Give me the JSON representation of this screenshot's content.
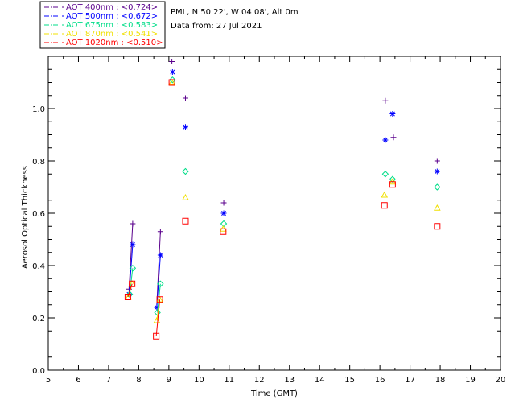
{
  "header": {
    "station": "PML, N 50 22', W 04 08', Alt 0m",
    "date": "Data from: 27 Jul 2021"
  },
  "chart_data": {
    "type": "scatter",
    "xlabel": "Time (GMT)",
    "ylabel": "Aerosol Optical Thickness",
    "xlim": [
      5,
      20
    ],
    "ylim": [
      0.0,
      1.2
    ],
    "xticks": [
      5,
      6,
      7,
      8,
      9,
      10,
      11,
      12,
      13,
      14,
      15,
      16,
      17,
      18,
      19,
      20
    ],
    "yticks": [
      0.0,
      0.2,
      0.4,
      0.6,
      0.8,
      1.0
    ],
    "ytick_labels": [
      "0.0",
      "0.2",
      "0.4",
      "0.6",
      "0.8",
      "1.0"
    ],
    "legend_position": "top-left",
    "series": [
      {
        "name": "AOT  400nm : <0.724>",
        "color": "#5a008c",
        "marker": "plus",
        "points": [
          [
            7.68,
            0.31
          ],
          [
            7.8,
            0.56
          ],
          [
            8.72,
            0.53
          ],
          [
            9.1,
            1.18
          ],
          [
            9.55,
            1.04
          ],
          [
            10.82,
            0.64
          ],
          [
            16.18,
            1.03
          ],
          [
            16.45,
            0.89
          ],
          [
            17.9,
            0.8
          ]
        ],
        "lines": [
          [
            [
              7.68,
              0.31
            ],
            [
              7.8,
              0.56
            ]
          ],
          [
            [
              8.6,
              0.25
            ],
            [
              8.72,
              0.53
            ]
          ]
        ]
      },
      {
        "name": "AOT  500nm : <0.672>",
        "color": "#0000ff",
        "marker": "asterisk",
        "points": [
          [
            7.68,
            0.29
          ],
          [
            7.8,
            0.48
          ],
          [
            8.6,
            0.24
          ],
          [
            8.72,
            0.44
          ],
          [
            9.12,
            1.14
          ],
          [
            9.55,
            0.93
          ],
          [
            10.82,
            0.6
          ],
          [
            16.18,
            0.88
          ],
          [
            16.42,
            0.98
          ],
          [
            17.9,
            0.76
          ]
        ],
        "lines": [
          [
            [
              7.68,
              0.29
            ],
            [
              7.8,
              0.48
            ]
          ],
          [
            [
              8.6,
              0.24
            ],
            [
              8.72,
              0.44
            ]
          ]
        ]
      },
      {
        "name": "AOT  675nm : <0.583>",
        "color": "#00dd88",
        "marker": "diamond",
        "points": [
          [
            7.7,
            0.29
          ],
          [
            7.8,
            0.39
          ],
          [
            8.62,
            0.22
          ],
          [
            8.72,
            0.33
          ],
          [
            9.12,
            1.11
          ],
          [
            9.55,
            0.76
          ],
          [
            10.82,
            0.56
          ],
          [
            16.18,
            0.75
          ],
          [
            16.42,
            0.73
          ],
          [
            17.9,
            0.7
          ]
        ],
        "lines": [
          [
            [
              7.7,
              0.29
            ],
            [
              7.8,
              0.39
            ]
          ],
          [
            [
              8.62,
              0.22
            ],
            [
              8.72,
              0.33
            ]
          ]
        ]
      },
      {
        "name": "AOT  870nm : <0.541>",
        "color": "#f0e000",
        "marker": "triangle",
        "points": [
          [
            7.66,
            0.28
          ],
          [
            7.78,
            0.33
          ],
          [
            8.6,
            0.19
          ],
          [
            8.7,
            0.27
          ],
          [
            9.1,
            1.1
          ],
          [
            9.55,
            0.66
          ],
          [
            10.8,
            0.54
          ],
          [
            16.15,
            0.67
          ],
          [
            16.42,
            0.72
          ],
          [
            17.9,
            0.62
          ]
        ],
        "lines": [
          [
            [
              7.66,
              0.28
            ],
            [
              7.78,
              0.33
            ]
          ],
          [
            [
              8.6,
              0.19
            ],
            [
              8.7,
              0.27
            ]
          ]
        ]
      },
      {
        "name": "AOT 1020nm : <0.510>",
        "color": "#ff0000",
        "marker": "square",
        "points": [
          [
            7.64,
            0.28
          ],
          [
            7.78,
            0.33
          ],
          [
            8.58,
            0.13
          ],
          [
            8.7,
            0.27
          ],
          [
            9.1,
            1.1
          ],
          [
            9.55,
            0.57
          ],
          [
            10.8,
            0.53
          ],
          [
            16.15,
            0.63
          ],
          [
            16.42,
            0.71
          ],
          [
            17.9,
            0.55
          ]
        ],
        "lines": [
          [
            [
              7.64,
              0.28
            ],
            [
              7.78,
              0.33
            ]
          ],
          [
            [
              8.58,
              0.13
            ],
            [
              8.7,
              0.27
            ]
          ]
        ]
      }
    ]
  }
}
